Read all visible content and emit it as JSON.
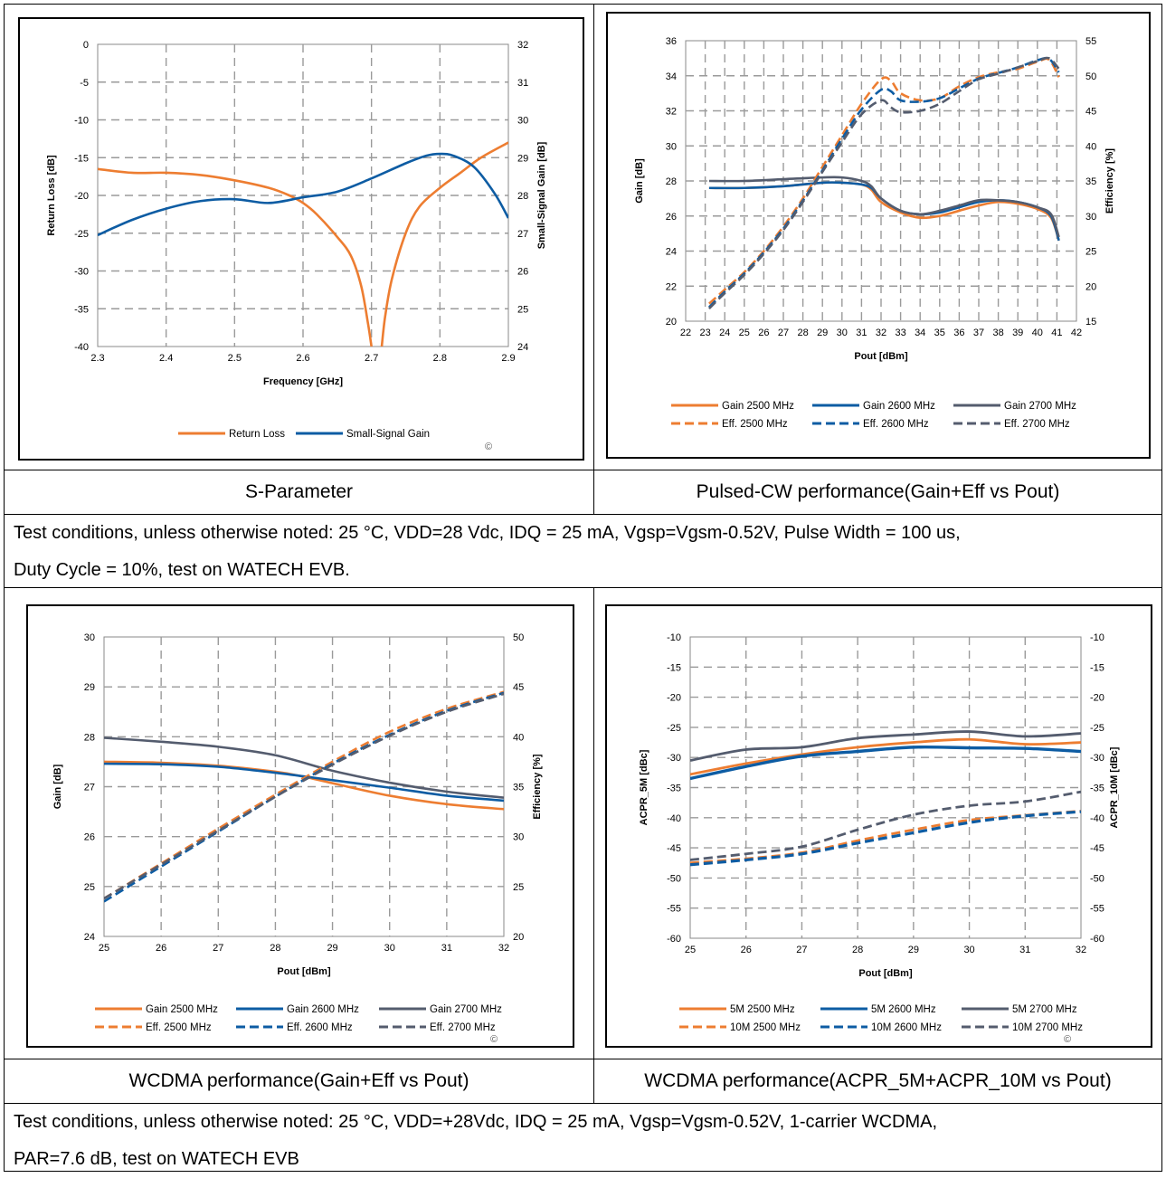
{
  "captions": {
    "c1": "S-Parameter",
    "c2": "Pulsed-CW performance(Gain+Eff vs Pout)",
    "c3": "WCDMA performance(Gain+Eff vs Pout)",
    "c4": "WCDMA performance(ACPR_5M+ACPR_10M vs Pout)"
  },
  "conditions": {
    "pulsed_line1": "Test conditions, unless otherwise noted: 25 °C, VDD=28 Vdc, IDQ = 25 mA, Vgsp=Vgsm-0.52V, Pulse Width = 100 us,",
    "pulsed_line2": "Duty Cycle = 10%, test on WATECH EVB.",
    "wcdma_line1": "Test conditions, unless otherwise noted: 25 °C, VDD=+28Vdc, IDQ = 25 mA, Vgsp=Vgsm-0.52V, 1-carrier WCDMA,",
    "wcdma_line2": "PAR=7.6 dB, test on WATECH EVB"
  },
  "copyright_mark": "©",
  "colors": {
    "orange": "#ED7D31",
    "blue": "#0D5CA3",
    "gray": "#545C6E",
    "grid": "#9a9a9a"
  },
  "chart_data": [
    {
      "type": "line",
      "xlabel": "Frequency [GHz]",
      "ylabel": "Return Loss [dB]",
      "y2label": "Small-Signal Gain [dB]",
      "xlim": [
        2.3,
        2.9
      ],
      "ylim": [
        -40,
        0
      ],
      "y2lim": [
        24,
        32
      ],
      "xticks": [
        "2.3",
        "2.4",
        "2.5",
        "2.6",
        "2.7",
        "2.8",
        "2.9"
      ],
      "yticks": [
        "0",
        "-5",
        "-10",
        "-15",
        "-20",
        "-25",
        "-30",
        "-35",
        "-40"
      ],
      "y2ticks": [
        "32",
        "31",
        "30",
        "29",
        "28",
        "27",
        "26",
        "25",
        "24"
      ],
      "series": [
        {
          "name": "Return Loss",
          "axis": "left",
          "color": "orange",
          "dash": false,
          "width": 2.6,
          "x": [
            2.3,
            2.35,
            2.4,
            2.45,
            2.5,
            2.55,
            2.58,
            2.6,
            2.62,
            2.65,
            2.67,
            2.685,
            2.695,
            2.7
          ],
          "y": [
            -16.5,
            -17,
            -17,
            -17.3,
            -18,
            -19,
            -20,
            -21,
            -22.5,
            -25.5,
            -28,
            -32,
            -37,
            -40
          ]
        },
        {
          "name": "Return Loss",
          "axis": "left",
          "color": "orange",
          "dash": false,
          "width": 2.6,
          "x": [
            2.715,
            2.72,
            2.73,
            2.75,
            2.77,
            2.8,
            2.83,
            2.86,
            2.9
          ],
          "y": [
            -40,
            -36,
            -31,
            -25,
            -21.5,
            -19,
            -17,
            -15,
            -13
          ]
        },
        {
          "name": "Small-Signal Gain",
          "axis": "right",
          "color": "blue",
          "dash": false,
          "width": 2.6,
          "x": [
            2.3,
            2.35,
            2.4,
            2.45,
            2.5,
            2.55,
            2.6,
            2.65,
            2.7,
            2.75,
            2.78,
            2.8,
            2.82,
            2.85,
            2.88,
            2.9
          ],
          "y": [
            26.95,
            27.35,
            27.65,
            27.85,
            27.9,
            27.8,
            27.95,
            28.1,
            28.45,
            28.85,
            29.05,
            29.1,
            29.05,
            28.75,
            28.05,
            27.4
          ]
        }
      ]
    },
    {
      "type": "line",
      "xlabel": "Pout [dBm]",
      "ylabel": "Gain [dB]",
      "y2label": "Efficiency [%]",
      "xlim": [
        22,
        42
      ],
      "ylim": [
        20,
        36
      ],
      "y2lim": [
        15,
        55
      ],
      "xticks": [
        "22",
        "23",
        "24",
        "25",
        "26",
        "27",
        "28",
        "29",
        "30",
        "31",
        "32",
        "33",
        "34",
        "35",
        "36",
        "37",
        "38",
        "39",
        "40",
        "41",
        "42"
      ],
      "yticks": [
        "36",
        "34",
        "32",
        "30",
        "28",
        "26",
        "24",
        "22",
        "20"
      ],
      "y2ticks": [
        "55",
        "50",
        "45",
        "40",
        "35",
        "30",
        "25",
        "20",
        "15"
      ],
      "series": [
        {
          "name": "Gain 2500 MHz",
          "axis": "left",
          "color": "orange",
          "dash": false,
          "width": 2.6,
          "x": [
            23.2,
            25,
            27,
            29,
            30,
            31,
            31.5,
            32,
            33,
            34,
            35,
            36,
            37,
            38,
            39,
            40,
            40.7,
            41.1
          ],
          "y": [
            27.6,
            27.6,
            27.7,
            27.9,
            27.9,
            27.8,
            27.5,
            26.8,
            26.2,
            25.9,
            26,
            26.3,
            26.6,
            26.8,
            26.7,
            26.4,
            25.9,
            24.6
          ]
        },
        {
          "name": "Gain 2600 MHz",
          "axis": "left",
          "color": "blue",
          "dash": false,
          "width": 2.6,
          "x": [
            23.2,
            25,
            27,
            29,
            30,
            31,
            31.5,
            32,
            33,
            34,
            35,
            36,
            37,
            38,
            39,
            40,
            40.7,
            41.1
          ],
          "y": [
            27.6,
            27.6,
            27.7,
            27.9,
            27.9,
            27.8,
            27.6,
            27,
            26.3,
            26.1,
            26.2,
            26.5,
            26.8,
            26.9,
            26.8,
            26.5,
            26,
            24.6
          ]
        },
        {
          "name": "Gain 2700 MHz",
          "axis": "left",
          "color": "gray",
          "dash": false,
          "width": 2.6,
          "x": [
            23.2,
            25,
            27,
            29,
            30,
            31,
            31.5,
            32,
            33,
            34,
            35,
            36,
            37,
            38,
            39,
            40,
            40.7,
            41.1
          ],
          "y": [
            28,
            28,
            28.1,
            28.2,
            28.2,
            28,
            27.7,
            27,
            26.3,
            26.1,
            26.3,
            26.6,
            26.9,
            26.9,
            26.8,
            26.5,
            26.1,
            24.8
          ]
        },
        {
          "name": "Eff. 2500 MHz",
          "axis": "right",
          "color": "orange",
          "dash": true,
          "width": 2.6,
          "x": [
            23.2,
            24,
            25,
            26,
            27,
            28,
            29,
            30,
            31,
            32,
            32.5,
            33,
            34,
            35,
            36,
            37,
            38,
            39,
            40,
            40.6,
            41.1
          ],
          "y": [
            17.5,
            19.5,
            22,
            25,
            28.5,
            32.5,
            37,
            41.5,
            46,
            49.5,
            49.3,
            47.5,
            46.5,
            46.8,
            48.5,
            49.8,
            50.5,
            51,
            52,
            52.3,
            49.8
          ]
        },
        {
          "name": "Eff. 2600 MHz",
          "axis": "right",
          "color": "blue",
          "dash": true,
          "width": 2.6,
          "x": [
            23.2,
            24,
            25,
            26,
            27,
            28,
            29,
            30,
            31,
            32,
            32.5,
            33,
            34,
            35,
            36,
            37,
            38,
            39,
            40,
            40.6,
            41.1
          ],
          "y": [
            17,
            19.2,
            21.8,
            24.8,
            28.2,
            32.2,
            36.5,
            41,
            45.2,
            48,
            47.8,
            46.5,
            46.3,
            46.8,
            48.2,
            49.6,
            50.4,
            51.2,
            52.2,
            52.4,
            50.5
          ]
        },
        {
          "name": "Eff. 2700 MHz",
          "axis": "right",
          "color": "gray",
          "dash": true,
          "width": 2.6,
          "x": [
            23.2,
            24,
            25,
            26,
            27,
            28,
            29,
            30,
            31,
            32,
            32.5,
            33,
            34,
            35,
            36,
            37,
            38,
            39,
            40,
            40.6,
            41.1
          ],
          "y": [
            16.8,
            19,
            21.6,
            24.6,
            28,
            32,
            36.3,
            40.5,
            44.5,
            46.5,
            45.5,
            44.8,
            45,
            46,
            47.8,
            49.5,
            50.3,
            51.2,
            52.1,
            52.5,
            51
          ]
        }
      ],
      "legend": [
        "Gain 2500 MHz",
        "Gain 2600 MHz",
        "Gain 2700 MHz",
        "Eff. 2500 MHz",
        "Eff. 2600 MHz",
        "Eff. 2700 MHz"
      ]
    },
    {
      "type": "line",
      "xlabel": "Pout [dBm]",
      "ylabel": "Gain [dB]",
      "y2label": "Efficiency [%]",
      "xlim": [
        25,
        32
      ],
      "ylim": [
        24,
        30
      ],
      "y2lim": [
        20,
        50
      ],
      "xticks": [
        "25",
        "26",
        "27",
        "28",
        "29",
        "30",
        "31",
        "32"
      ],
      "yticks": [
        "30",
        "29",
        "28",
        "27",
        "26",
        "25",
        "24"
      ],
      "y2ticks": [
        "50",
        "45",
        "40",
        "35",
        "30",
        "25",
        "20"
      ],
      "series": [
        {
          "name": "Gain 2500 MHz",
          "axis": "left",
          "color": "orange",
          "dash": false,
          "width": 2.6,
          "x": [
            25,
            26,
            27,
            28,
            28.5,
            29,
            30,
            31,
            32
          ],
          "y": [
            27.5,
            27.48,
            27.42,
            27.3,
            27.2,
            27.07,
            26.82,
            26.65,
            26.55
          ]
        },
        {
          "name": "Gain 2600 MHz",
          "axis": "left",
          "color": "blue",
          "dash": false,
          "width": 2.6,
          "x": [
            25,
            26,
            27,
            28,
            29,
            30,
            31,
            32
          ],
          "y": [
            27.46,
            27.45,
            27.4,
            27.28,
            27.13,
            26.98,
            26.82,
            26.72
          ]
        },
        {
          "name": "Gain 2700 MHz",
          "axis": "left",
          "color": "gray",
          "dash": false,
          "width": 2.6,
          "x": [
            25,
            26,
            27,
            28,
            29,
            30,
            31,
            32
          ],
          "y": [
            27.98,
            27.9,
            27.8,
            27.63,
            27.32,
            27.08,
            26.9,
            26.78
          ]
        },
        {
          "name": "Eff. 2500 MHz",
          "axis": "right",
          "color": "orange",
          "dash": true,
          "width": 2.6,
          "x": [
            25,
            26,
            27,
            28,
            29,
            30,
            31,
            32
          ],
          "y": [
            23.8,
            27.3,
            30.8,
            34.2,
            37.5,
            40.5,
            42.8,
            44.5
          ]
        },
        {
          "name": "Eff. 2600 MHz",
          "axis": "right",
          "color": "blue",
          "dash": true,
          "width": 2.6,
          "x": [
            25,
            26,
            27,
            28,
            29,
            30,
            31,
            32
          ],
          "y": [
            23.5,
            27,
            30.5,
            34,
            37.3,
            40.2,
            42.6,
            44.4
          ]
        },
        {
          "name": "Eff. 2700 MHz",
          "axis": "right",
          "color": "gray",
          "dash": true,
          "width": 2.6,
          "x": [
            25,
            26,
            27,
            28,
            29,
            30,
            31,
            32
          ],
          "y": [
            23.8,
            27.2,
            30.6,
            34,
            37.2,
            40.1,
            42.5,
            44.3
          ]
        }
      ],
      "legend": [
        "Gain 2500 MHz",
        "Gain 2600 MHz",
        "Gain 2700 MHz",
        "Eff. 2500 MHz",
        "Eff. 2600 MHz",
        "Eff. 2700 MHz"
      ]
    },
    {
      "type": "line",
      "xlabel": "Pout [dBm]",
      "ylabel": "ACPR_5M [dBc]",
      "y2label": "ACPR_10M [dBc]",
      "xlim": [
        25,
        32
      ],
      "ylim": [
        -60,
        -10
      ],
      "y2lim": [
        -60,
        -10
      ],
      "xticks": [
        "25",
        "26",
        "27",
        "28",
        "29",
        "30",
        "31",
        "32"
      ],
      "yticks": [
        "-10",
        "-15",
        "-20",
        "-25",
        "-30",
        "-35",
        "-40",
        "-45",
        "-50",
        "-55",
        "-60"
      ],
      "y2ticks": [
        "-10",
        "-15",
        "-20",
        "-25",
        "-30",
        "-35",
        "-40",
        "-45",
        "-50",
        "-55",
        "-60"
      ],
      "series": [
        {
          "name": "5M 2500 MHz",
          "axis": "left",
          "color": "orange",
          "dash": false,
          "width": 2.8,
          "x": [
            25,
            26,
            27,
            28,
            29,
            30,
            31,
            32
          ],
          "y": [
            -32.8,
            -31,
            -29.5,
            -28.3,
            -27.5,
            -27,
            -27.8,
            -27.5
          ]
        },
        {
          "name": "5M 2600 MHz",
          "axis": "left",
          "color": "blue",
          "dash": false,
          "width": 3.4,
          "x": [
            25,
            26,
            27,
            28,
            29,
            30,
            31,
            32
          ],
          "y": [
            -33.5,
            -31.5,
            -29.8,
            -29,
            -28.3,
            -28.4,
            -28.5,
            -29
          ]
        },
        {
          "name": "5M 2700 MHz",
          "axis": "left",
          "color": "gray",
          "dash": false,
          "width": 2.8,
          "x": [
            25,
            26,
            27,
            28,
            29,
            30,
            31,
            32
          ],
          "y": [
            -30.5,
            -28.7,
            -28.3,
            -26.8,
            -26.2,
            -25.7,
            -26.5,
            -26
          ]
        },
        {
          "name": "10M 2500 MHz",
          "axis": "right",
          "color": "orange",
          "dash": true,
          "width": 2.8,
          "x": [
            25,
            26,
            27,
            28,
            29,
            30,
            31,
            32
          ],
          "y": [
            -47.5,
            -46.8,
            -45.8,
            -43.8,
            -42,
            -40.4,
            -39.6,
            -38.9
          ]
        },
        {
          "name": "10M 2600 MHz",
          "axis": "right",
          "color": "blue",
          "dash": true,
          "width": 3.2,
          "x": [
            25,
            26,
            27,
            28,
            29,
            30,
            31,
            32
          ],
          "y": [
            -47.8,
            -47,
            -46,
            -44.2,
            -42.5,
            -40.8,
            -39.7,
            -39
          ]
        },
        {
          "name": "10M 2700 MHz",
          "axis": "right",
          "color": "gray",
          "dash": true,
          "width": 2.8,
          "x": [
            25,
            26,
            27,
            28,
            29,
            30,
            31,
            32
          ],
          "y": [
            -47,
            -46,
            -44.8,
            -42,
            -39.5,
            -38,
            -37.3,
            -35.7
          ]
        }
      ],
      "legend": [
        "5M 2500 MHz",
        "5M 2600 MHz",
        "5M 2700 MHz",
        "10M 2500 MHz",
        "10M 2600 MHz",
        "10M 2700 MHz"
      ]
    }
  ]
}
